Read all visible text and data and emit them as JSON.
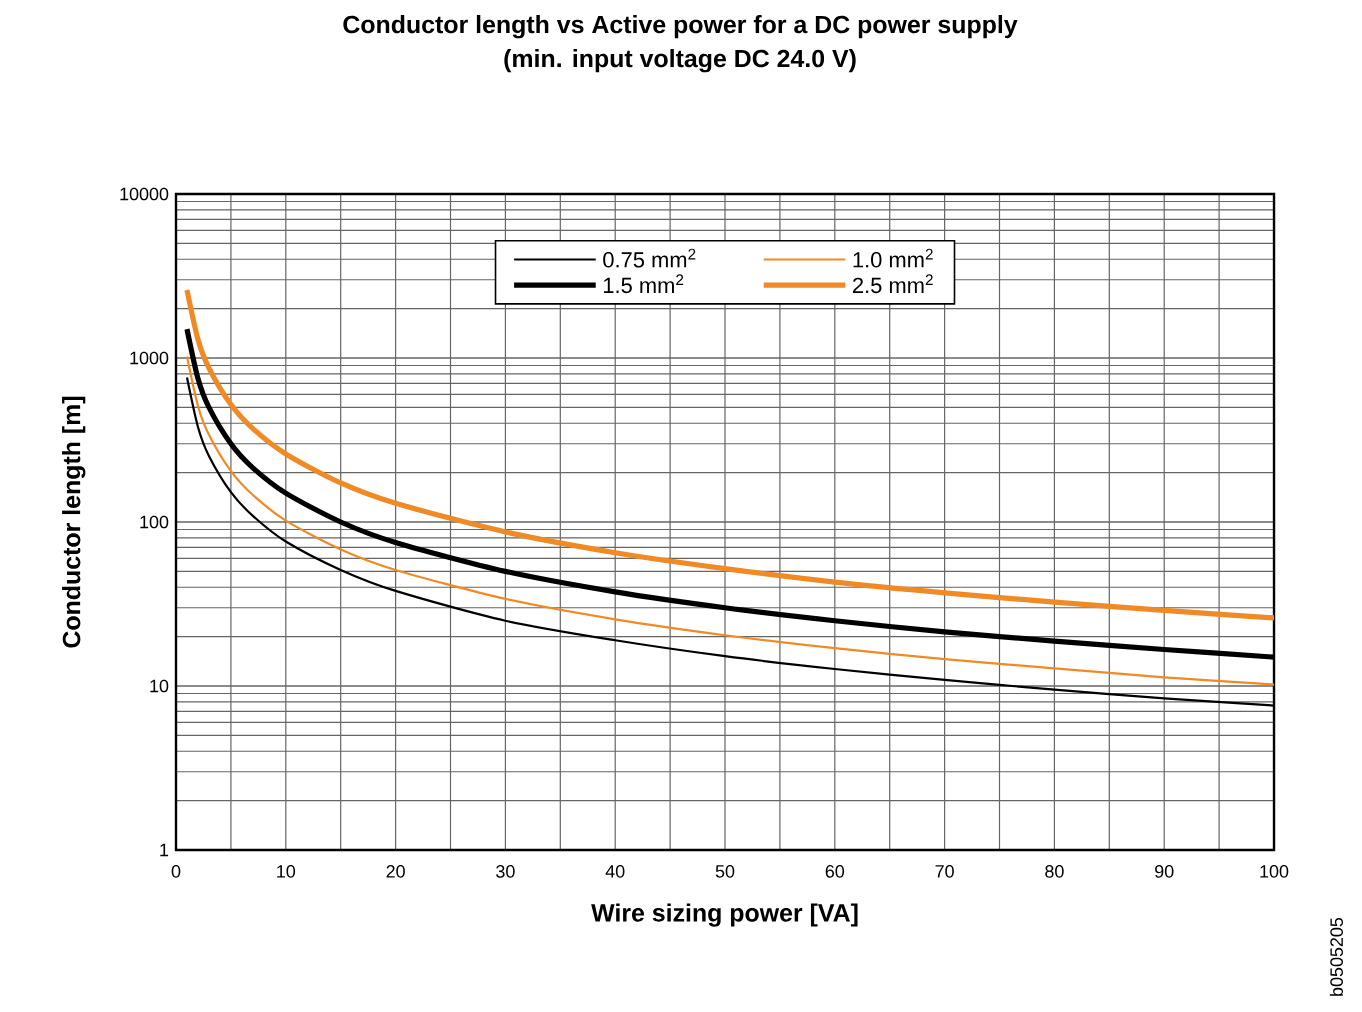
{
  "chart_data": {
    "type": "line",
    "title": "Conductor length vs Active power for a DC power supply",
    "subtitle": "(min. input voltage DC 24.0 V)",
    "xlabel": "Wire sizing power [VA]",
    "ylabel": "Conductor length [m]",
    "x": [
      1,
      2,
      3,
      5,
      7,
      10,
      15,
      20,
      30,
      40,
      50,
      60,
      70,
      80,
      90,
      100
    ],
    "series": [
      {
        "name": "0.75 mm$^{2}$",
        "color": "#000000",
        "values": [
          760,
          380,
          253,
          152,
          109,
          76,
          51,
          38,
          25,
          19,
          15.2,
          12.7,
          10.9,
          9.5,
          8.4,
          7.6
        ]
      },
      {
        "name": "1.0 mm$^{2}$",
        "color": "#f08a24",
        "values": [
          1020,
          510,
          340,
          204,
          146,
          102,
          68,
          51,
          34,
          25.5,
          20.4,
          17,
          14.6,
          12.8,
          11.3,
          10.2
        ]
      },
      {
        "name": "1.5 mm$^{2}$",
        "color": "#000000",
        "values": [
          1500,
          750,
          500,
          300,
          214,
          150,
          100,
          75,
          50,
          37.5,
          30,
          25,
          21.4,
          18.8,
          16.7,
          15
        ]
      },
      {
        "name": "2.5 mm$^{2}$",
        "color": "#f08a24",
        "values": [
          2600,
          1300,
          867,
          520,
          371,
          260,
          173,
          130,
          87,
          65,
          52,
          43,
          37,
          32.5,
          28.9,
          26
        ]
      }
    ],
    "xlim": [
      0,
      100
    ],
    "xticks": [
      0,
      10,
      20,
      30,
      40,
      50,
      60,
      70,
      80,
      90,
      100
    ],
    "ylim": [
      1,
      10000
    ],
    "yticks": [
      1,
      10,
      100,
      1000,
      10000
    ],
    "log": "y",
    "grid": true,
    "legend": "top",
    "marker": "none",
    "line_style": "solid",
    "annotations": [
      "b0505205"
    ]
  }
}
